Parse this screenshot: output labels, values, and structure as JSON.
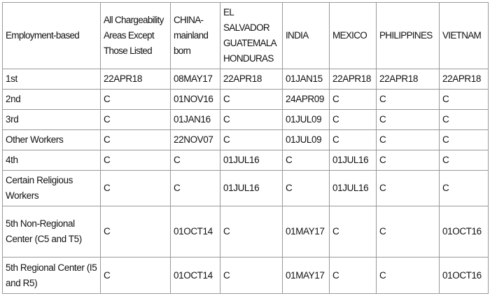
{
  "table": {
    "header": [
      "Employment-based",
      "All Chargeability Areas Except Those Listed",
      "CHINA-mainland born",
      "EL SALVADOR GUATEMALA HONDURAS",
      "INDIA",
      "MEXICO",
      "PHILIPPINES",
      "VIETNAM"
    ],
    "rows": [
      [
        "1st",
        "22APR18",
        "08MAY17",
        "22APR18",
        "01JAN15",
        "22APR18",
        "22APR18",
        "22APR18"
      ],
      [
        "2nd",
        "C",
        "01NOV16",
        "C",
        "24APR09",
        "C",
        "C",
        "C"
      ],
      [
        "3rd",
        "C",
        "01JAN16",
        "C",
        "01JUL09",
        "C",
        "C",
        "C"
      ],
      [
        "Other Workers",
        "C",
        "22NOV07",
        "C",
        "01JUL09",
        "C",
        "C",
        "C"
      ],
      [
        "4th",
        "C",
        "C",
        "01JUL16",
        "C",
        "01JUL16",
        "C",
        "C"
      ],
      [
        "Certain Religious Workers",
        "C",
        "C",
        "01JUL16",
        "C",
        "01JUL16",
        "C",
        "C"
      ],
      [
        "5th Non-Regional Center (C5 and T5)",
        "C",
        "01OCT14",
        "C",
        "01MAY17",
        "C",
        "C",
        "01OCT16"
      ],
      [
        "5th Regional Center (I5 and R5)",
        "C",
        "01OCT14",
        "C",
        "01MAY17",
        "C",
        "C",
        "01OCT16"
      ]
    ]
  }
}
